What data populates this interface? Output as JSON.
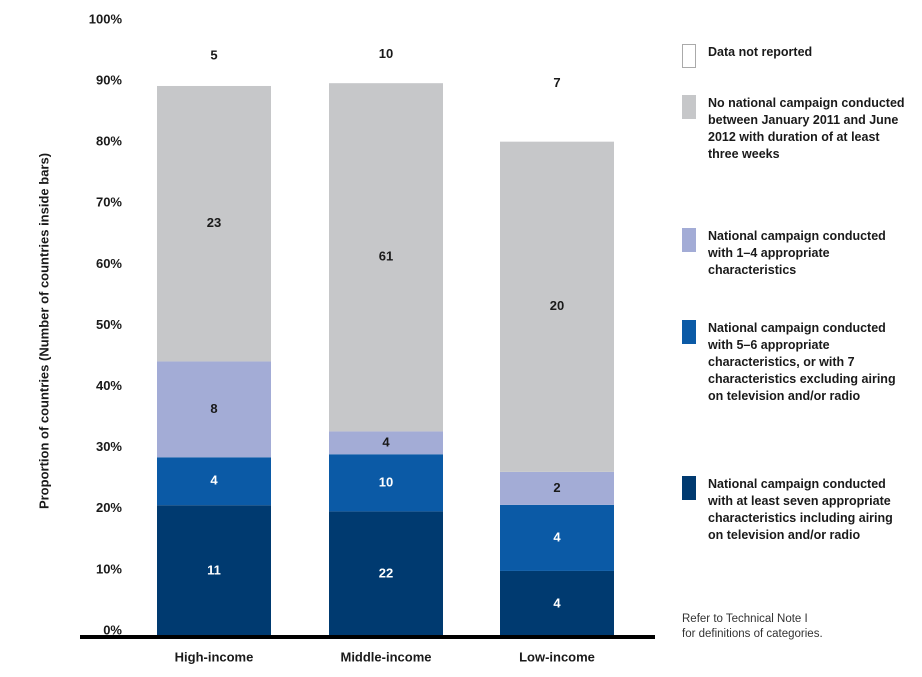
{
  "chart_data": {
    "type": "stacked100",
    "y_label": "Proportion of countries (Number of countries inside bars)",
    "categories": [
      "High-income",
      "Middle-income",
      "Low-income"
    ],
    "series": [
      {
        "name": "National campaign conducted with at least seven appropriate characteristics including airing on television and/or radio",
        "color": "#003a70",
        "values": [
          11,
          22,
          4
        ]
      },
      {
        "name": "National campaign conducted with 5–6 appropriate characteristics, or with 7 characteristics excluding airing on television and/or radio",
        "color": "#0b5aa6",
        "values": [
          4,
          10,
          4
        ]
      },
      {
        "name": "National campaign conducted with 1–4 appropriate characteristics",
        "color": "#a3acd6",
        "values": [
          8,
          4,
          2
        ]
      },
      {
        "name": "No national campaign conducted between January 2011 and June 2012 with duration of at least three weeks",
        "color": "#c6c7c9",
        "values": [
          23,
          61,
          20
        ]
      },
      {
        "name": "Data not reported",
        "color": "#ffffff",
        "values": [
          5,
          10,
          7
        ]
      }
    ],
    "ylim": [
      0,
      100
    ],
    "yticks": [
      {
        "value": 0,
        "label": "0%"
      },
      {
        "value": 10,
        "label": "10%"
      },
      {
        "value": 20,
        "label": "20%"
      },
      {
        "value": 30,
        "label": "30%"
      },
      {
        "value": 40,
        "label": "40%"
      },
      {
        "value": 50,
        "label": "50%"
      },
      {
        "value": 60,
        "label": "60%"
      },
      {
        "value": 70,
        "label": "70%"
      },
      {
        "value": 80,
        "label": "80%"
      },
      {
        "value": 90,
        "label": "90%"
      },
      {
        "value": 100,
        "label": "100%"
      }
    ],
    "grid": false,
    "legend": "right",
    "notes": [
      "Refer to Technical Note I",
      "for definitions of categories."
    ]
  }
}
